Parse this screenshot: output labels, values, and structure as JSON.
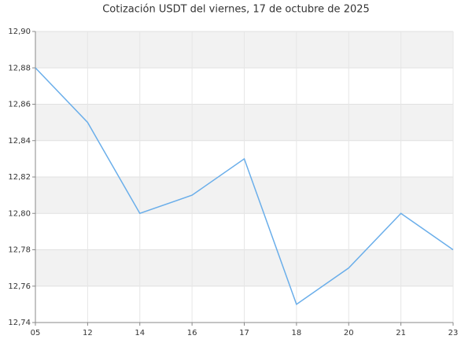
{
  "chart_data": {
    "type": "line",
    "title": "Cotización USDT del viernes, 17 de octubre de 2025",
    "categories": [
      "05",
      "12",
      "14",
      "16",
      "17",
      "18",
      "20",
      "21",
      "23"
    ],
    "series": [
      {
        "color": "#6aaeea",
        "values": [
          12.88,
          12.85,
          12.8,
          12.81,
          12.83,
          12.75,
          12.77,
          12.8,
          12.78
        ]
      }
    ],
    "ylim": [
      12.74,
      12.9
    ],
    "yticks": [
      {
        "value": 12.74,
        "label": "12,74"
      },
      {
        "value": 12.76,
        "label": "12,76"
      },
      {
        "value": 12.78,
        "label": "12,78"
      },
      {
        "value": 12.8,
        "label": "12,80"
      },
      {
        "value": 12.82,
        "label": "12,82"
      },
      {
        "value": 12.84,
        "label": "12,84"
      },
      {
        "value": 12.86,
        "label": "12,86"
      },
      {
        "value": 12.88,
        "label": "12,88"
      },
      {
        "value": 12.9,
        "label": "12,90"
      }
    ],
    "grid": true
  }
}
